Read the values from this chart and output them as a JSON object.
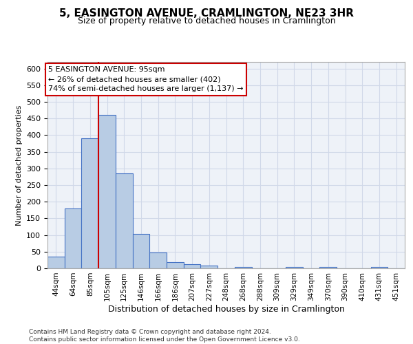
{
  "title_line1": "5, EASINGTON AVENUE, CRAMLINGTON, NE23 3HR",
  "title_line2": "Size of property relative to detached houses in Cramlington",
  "xlabel": "Distribution of detached houses by size in Cramlington",
  "ylabel": "Number of detached properties",
  "categories": [
    "44sqm",
    "64sqm",
    "85sqm",
    "105sqm",
    "125sqm",
    "146sqm",
    "166sqm",
    "186sqm",
    "207sqm",
    "227sqm",
    "248sqm",
    "268sqm",
    "288sqm",
    "309sqm",
    "329sqm",
    "349sqm",
    "370sqm",
    "390sqm",
    "410sqm",
    "431sqm",
    "451sqm"
  ],
  "values": [
    35,
    180,
    390,
    460,
    285,
    103,
    48,
    18,
    12,
    8,
    0,
    5,
    0,
    0,
    5,
    0,
    5,
    0,
    0,
    5,
    0
  ],
  "bar_color": "#b8cce4",
  "bar_edge_color": "#4472c4",
  "grid_color": "#d0d8e8",
  "background_color": "#ffffff",
  "plot_bg_color": "#eef2f8",
  "vline_x": 2.5,
  "vline_color": "#cc0000",
  "annotation_text": "5 EASINGTON AVENUE: 95sqm\n← 26% of detached houses are smaller (402)\n74% of semi-detached houses are larger (1,137) →",
  "annotation_box_color": "#ffffff",
  "annotation_box_edge": "#cc0000",
  "footer_text": "Contains HM Land Registry data © Crown copyright and database right 2024.\nContains public sector information licensed under the Open Government Licence v3.0.",
  "ylim": [
    0,
    620
  ],
  "yticks": [
    0,
    50,
    100,
    150,
    200,
    250,
    300,
    350,
    400,
    450,
    500,
    550,
    600
  ],
  "title1_fontsize": 11,
  "title2_fontsize": 9,
  "ylabel_fontsize": 8,
  "xlabel_fontsize": 9,
  "footer_fontsize": 6.5,
  "tick_fontsize": 8,
  "xtick_fontsize": 7.5
}
